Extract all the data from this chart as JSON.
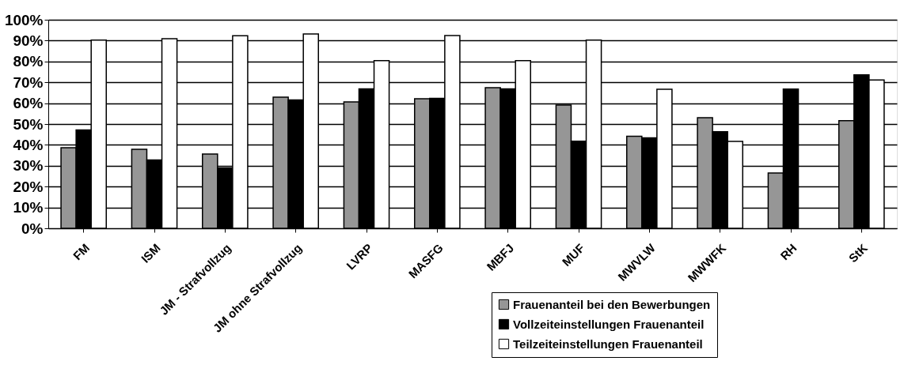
{
  "chart_data": {
    "type": "bar",
    "categories": [
      "FM",
      "ISM",
      "JM - Strafvollzug",
      "JM ohne Strafvollzug",
      "LVRP",
      "MASFG",
      "MBFJ",
      "MUF",
      "MWVLW",
      "MWWFK",
      "RH",
      "StK"
    ],
    "series": [
      {
        "name": "Frauenanteil bei den Bewerbungen",
        "color": "#969696",
        "values": [
          38.6,
          37.9,
          35.6,
          62.9,
          60.6,
          62.1,
          67.4,
          59.1,
          44.1,
          53.0,
          26.5,
          51.6
        ]
      },
      {
        "name": "Vollzeiteinstellungen Frauenanteil",
        "color": "#000000",
        "values": [
          47.2,
          32.8,
          29.0,
          61.6,
          66.9,
          62.3,
          66.9,
          41.8,
          43.4,
          46.3,
          66.8,
          73.6
        ]
      },
      {
        "name": "Teilzeiteinstellungen Frauenanteil",
        "color": "#ffffff",
        "values": [
          90.2,
          90.9,
          92.3,
          93.2,
          80.4,
          92.4,
          80.4,
          90.2,
          66.7,
          41.7,
          null,
          71.1
        ]
      }
    ],
    "ylim": [
      0,
      100
    ],
    "yticks": [
      {
        "value": 0,
        "label": "0%"
      },
      {
        "value": 10,
        "label": "10%"
      },
      {
        "value": 20,
        "label": "20%"
      },
      {
        "value": 30,
        "label": "30%"
      },
      {
        "value": 40,
        "label": "40%"
      },
      {
        "value": 50,
        "label": "50%"
      },
      {
        "value": 60,
        "label": "60%"
      },
      {
        "value": 70,
        "label": "70%"
      },
      {
        "value": 80,
        "label": "80%"
      },
      {
        "value": 90,
        "label": "90%"
      },
      {
        "value": 100,
        "label": "100%"
      }
    ],
    "grid": "y",
    "legend": "bottom right"
  }
}
